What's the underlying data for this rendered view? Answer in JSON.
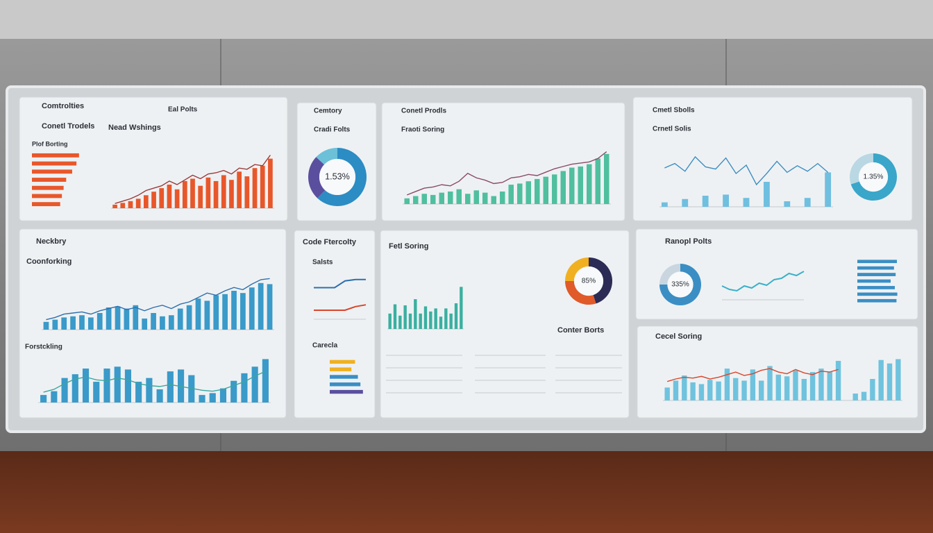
{
  "panels": [
    {
      "title": "Comtrolties",
      "tag": "Eal Polts",
      "subtitle": "Conetl Trodels",
      "subtitle2": "Nead Wshings",
      "charts": [
        {
          "type": "hbar",
          "title": "Plof Borting",
          "color": "#e8572a",
          "xlim": [
            0,
            60
          ],
          "values": [
            55,
            52,
            47,
            40,
            37,
            35,
            33
          ]
        },
        {
          "type": "bar-line",
          "color": "#e8572a",
          "line_color": "#9a3a3a",
          "ylim": [
            0,
            100
          ],
          "values": [
            6,
            9,
            12,
            16,
            22,
            28,
            34,
            40,
            32,
            46,
            50,
            38,
            52,
            46,
            56,
            48,
            62,
            54,
            68,
            72,
            84
          ],
          "line": [
            8,
            12,
            16,
            22,
            30,
            34,
            38,
            46,
            40,
            48,
            56,
            50,
            58,
            60,
            64,
            58,
            68,
            66,
            74,
            72,
            90
          ]
        }
      ]
    },
    {
      "title": "Cemtory",
      "subtitle": "Cradi Folts",
      "charts": [
        {
          "type": "donut",
          "center_label": "1.53%",
          "values": [
            62,
            25,
            13
          ],
          "colors": [
            "#2c8cc4",
            "#5a4f9e",
            "#6cc0d8"
          ]
        }
      ]
    },
    {
      "title": "Conetl Prodls",
      "subtitle": "Fraoti Soring",
      "charts": [
        {
          "type": "bar-line",
          "color": "#4fbf9f",
          "line_color": "#8a4a6a",
          "ylim": [
            0,
            100
          ],
          "values": [
            10,
            14,
            18,
            16,
            20,
            22,
            26,
            18,
            24,
            20,
            14,
            22,
            34,
            36,
            40,
            44,
            48,
            52,
            58,
            64,
            66,
            70,
            80,
            88
          ],
          "line": [
            16,
            22,
            28,
            30,
            34,
            32,
            40,
            54,
            46,
            42,
            36,
            38,
            46,
            48,
            52,
            50,
            56,
            62,
            66,
            70,
            72,
            74,
            80,
            92
          ]
        }
      ]
    },
    {
      "title": "Cmetl Sbolls",
      "subtitle": "Crnetl Solis",
      "charts": [
        {
          "type": "bar-line",
          "color": "#6fbfe0",
          "line_color": "#3d8ec4",
          "ylim": [
            0,
            100
          ],
          "values": [
            8,
            0,
            14,
            0,
            20,
            0,
            22,
            0,
            16,
            0,
            45,
            0,
            10,
            0,
            16,
            0,
            62
          ],
          "line": [
            70,
            78,
            64,
            90,
            72,
            68,
            88,
            60,
            75,
            40,
            60,
            82,
            62,
            74,
            64,
            78,
            62
          ]
        },
        {
          "type": "donut",
          "center_label": "1.35%",
          "values": [
            70,
            30
          ],
          "colors": [
            "#3aa6c9",
            "#b9d8e4"
          ]
        }
      ]
    },
    {
      "title": "Neckbry",
      "subtitle": "Coonforking",
      "charts": [
        {
          "type": "bar-line",
          "color": "#3a9ac9",
          "line_color": "#2d6fae",
          "ylim": [
            0,
            100
          ],
          "values": [
            14,
            18,
            22,
            24,
            26,
            22,
            30,
            40,
            42,
            38,
            44,
            20,
            30,
            24,
            26,
            38,
            44,
            56,
            52,
            62,
            64,
            70,
            66,
            76,
            84,
            82
          ],
          "line": [
            18,
            22,
            28,
            30,
            32,
            28,
            34,
            38,
            42,
            36,
            40,
            34,
            40,
            44,
            38,
            46,
            50,
            58,
            66,
            62,
            70,
            76,
            72,
            82,
            90,
            92
          ]
        },
        {
          "type": "bar-line",
          "title": "Forstckling",
          "color": "#3a9ac9",
          "line_color": "#3aa6a0",
          "ylim": [
            0,
            100
          ],
          "values": [
            16,
            24,
            52,
            60,
            72,
            44,
            72,
            76,
            70,
            44,
            52,
            28,
            66,
            70,
            58,
            16,
            20,
            30,
            46,
            62,
            76,
            92
          ],
          "line": [
            22,
            28,
            40,
            50,
            54,
            48,
            46,
            52,
            48,
            40,
            36,
            34,
            38,
            34,
            30,
            26,
            24,
            28,
            36,
            44,
            56,
            66
          ]
        }
      ]
    },
    {
      "title": "Code Ftercolty",
      "subtitle": "Salsts",
      "charts": [
        {
          "type": "line",
          "ylim": [
            0,
            100
          ],
          "series": [
            {
              "color": "#2d6fae",
              "values": [
                70,
                70,
                70,
                85,
                88,
                88
              ]
            },
            {
              "color": "#d9442a",
              "values": [
                20,
                20,
                20,
                20,
                28,
                32
              ]
            }
          ]
        },
        {
          "type": "hbar",
          "title": "Carecla",
          "xlim": [
            0,
            100
          ],
          "values": [
            70,
            60,
            78,
            85,
            92
          ],
          "colors": [
            "#f0b020",
            "#f0b020",
            "#3a8ec4",
            "#3a8ec4",
            "#5a4f9e"
          ]
        }
      ]
    },
    {
      "title": "Fetl Soring",
      "subtitle": "Conter Borts",
      "charts": [
        {
          "type": "bar-line",
          "color": "#3ab0a0",
          "ylim": [
            0,
            100
          ],
          "values": [
            30,
            48,
            26,
            46,
            30,
            58,
            30,
            44,
            34,
            40,
            24,
            40,
            30,
            50,
            82
          ]
        },
        {
          "type": "donut",
          "center_label": "85%",
          "values": [
            45,
            30,
            25
          ],
          "colors": [
            "#2b2b55",
            "#e05a2a",
            "#f0b020"
          ]
        }
      ]
    },
    {
      "title": "Ranopl Polts",
      "charts": [
        {
          "type": "donut",
          "center_label": "335%",
          "values": [
            75,
            25
          ],
          "colors": [
            "#3a8ec4",
            "#c9d6df"
          ]
        },
        {
          "type": "line",
          "ylim": [
            0,
            100
          ],
          "series": [
            {
              "color": "#3ab0c9",
              "values": [
                40,
                30,
                26,
                40,
                34,
                48,
                42,
                58,
                62,
                76,
                70,
                82
              ]
            }
          ]
        },
        {
          "type": "hbar",
          "color": "#3a8ec4",
          "xlim": [
            0,
            100
          ],
          "values": [
            95,
            88,
            92,
            80,
            90,
            96,
            94
          ]
        }
      ]
    },
    {
      "title": "Cecel Soring",
      "charts": [
        {
          "type": "bar-line",
          "color": "#6fc3de",
          "line_color": "#d9442a",
          "ylim": [
            0,
            100
          ],
          "values": [
            30,
            46,
            58,
            42,
            38,
            48,
            44,
            74,
            52,
            46,
            72,
            46,
            80,
            60,
            56,
            70,
            50,
            66,
            74,
            66,
            92,
            0,
            16,
            20,
            50,
            94,
            86,
            96
          ],
          "line": [
            44,
            50,
            54,
            52,
            56,
            50,
            54,
            60,
            66,
            58,
            62,
            70,
            74,
            66,
            62,
            72,
            64,
            60,
            68,
            66,
            72
          ]
        }
      ]
    }
  ]
}
